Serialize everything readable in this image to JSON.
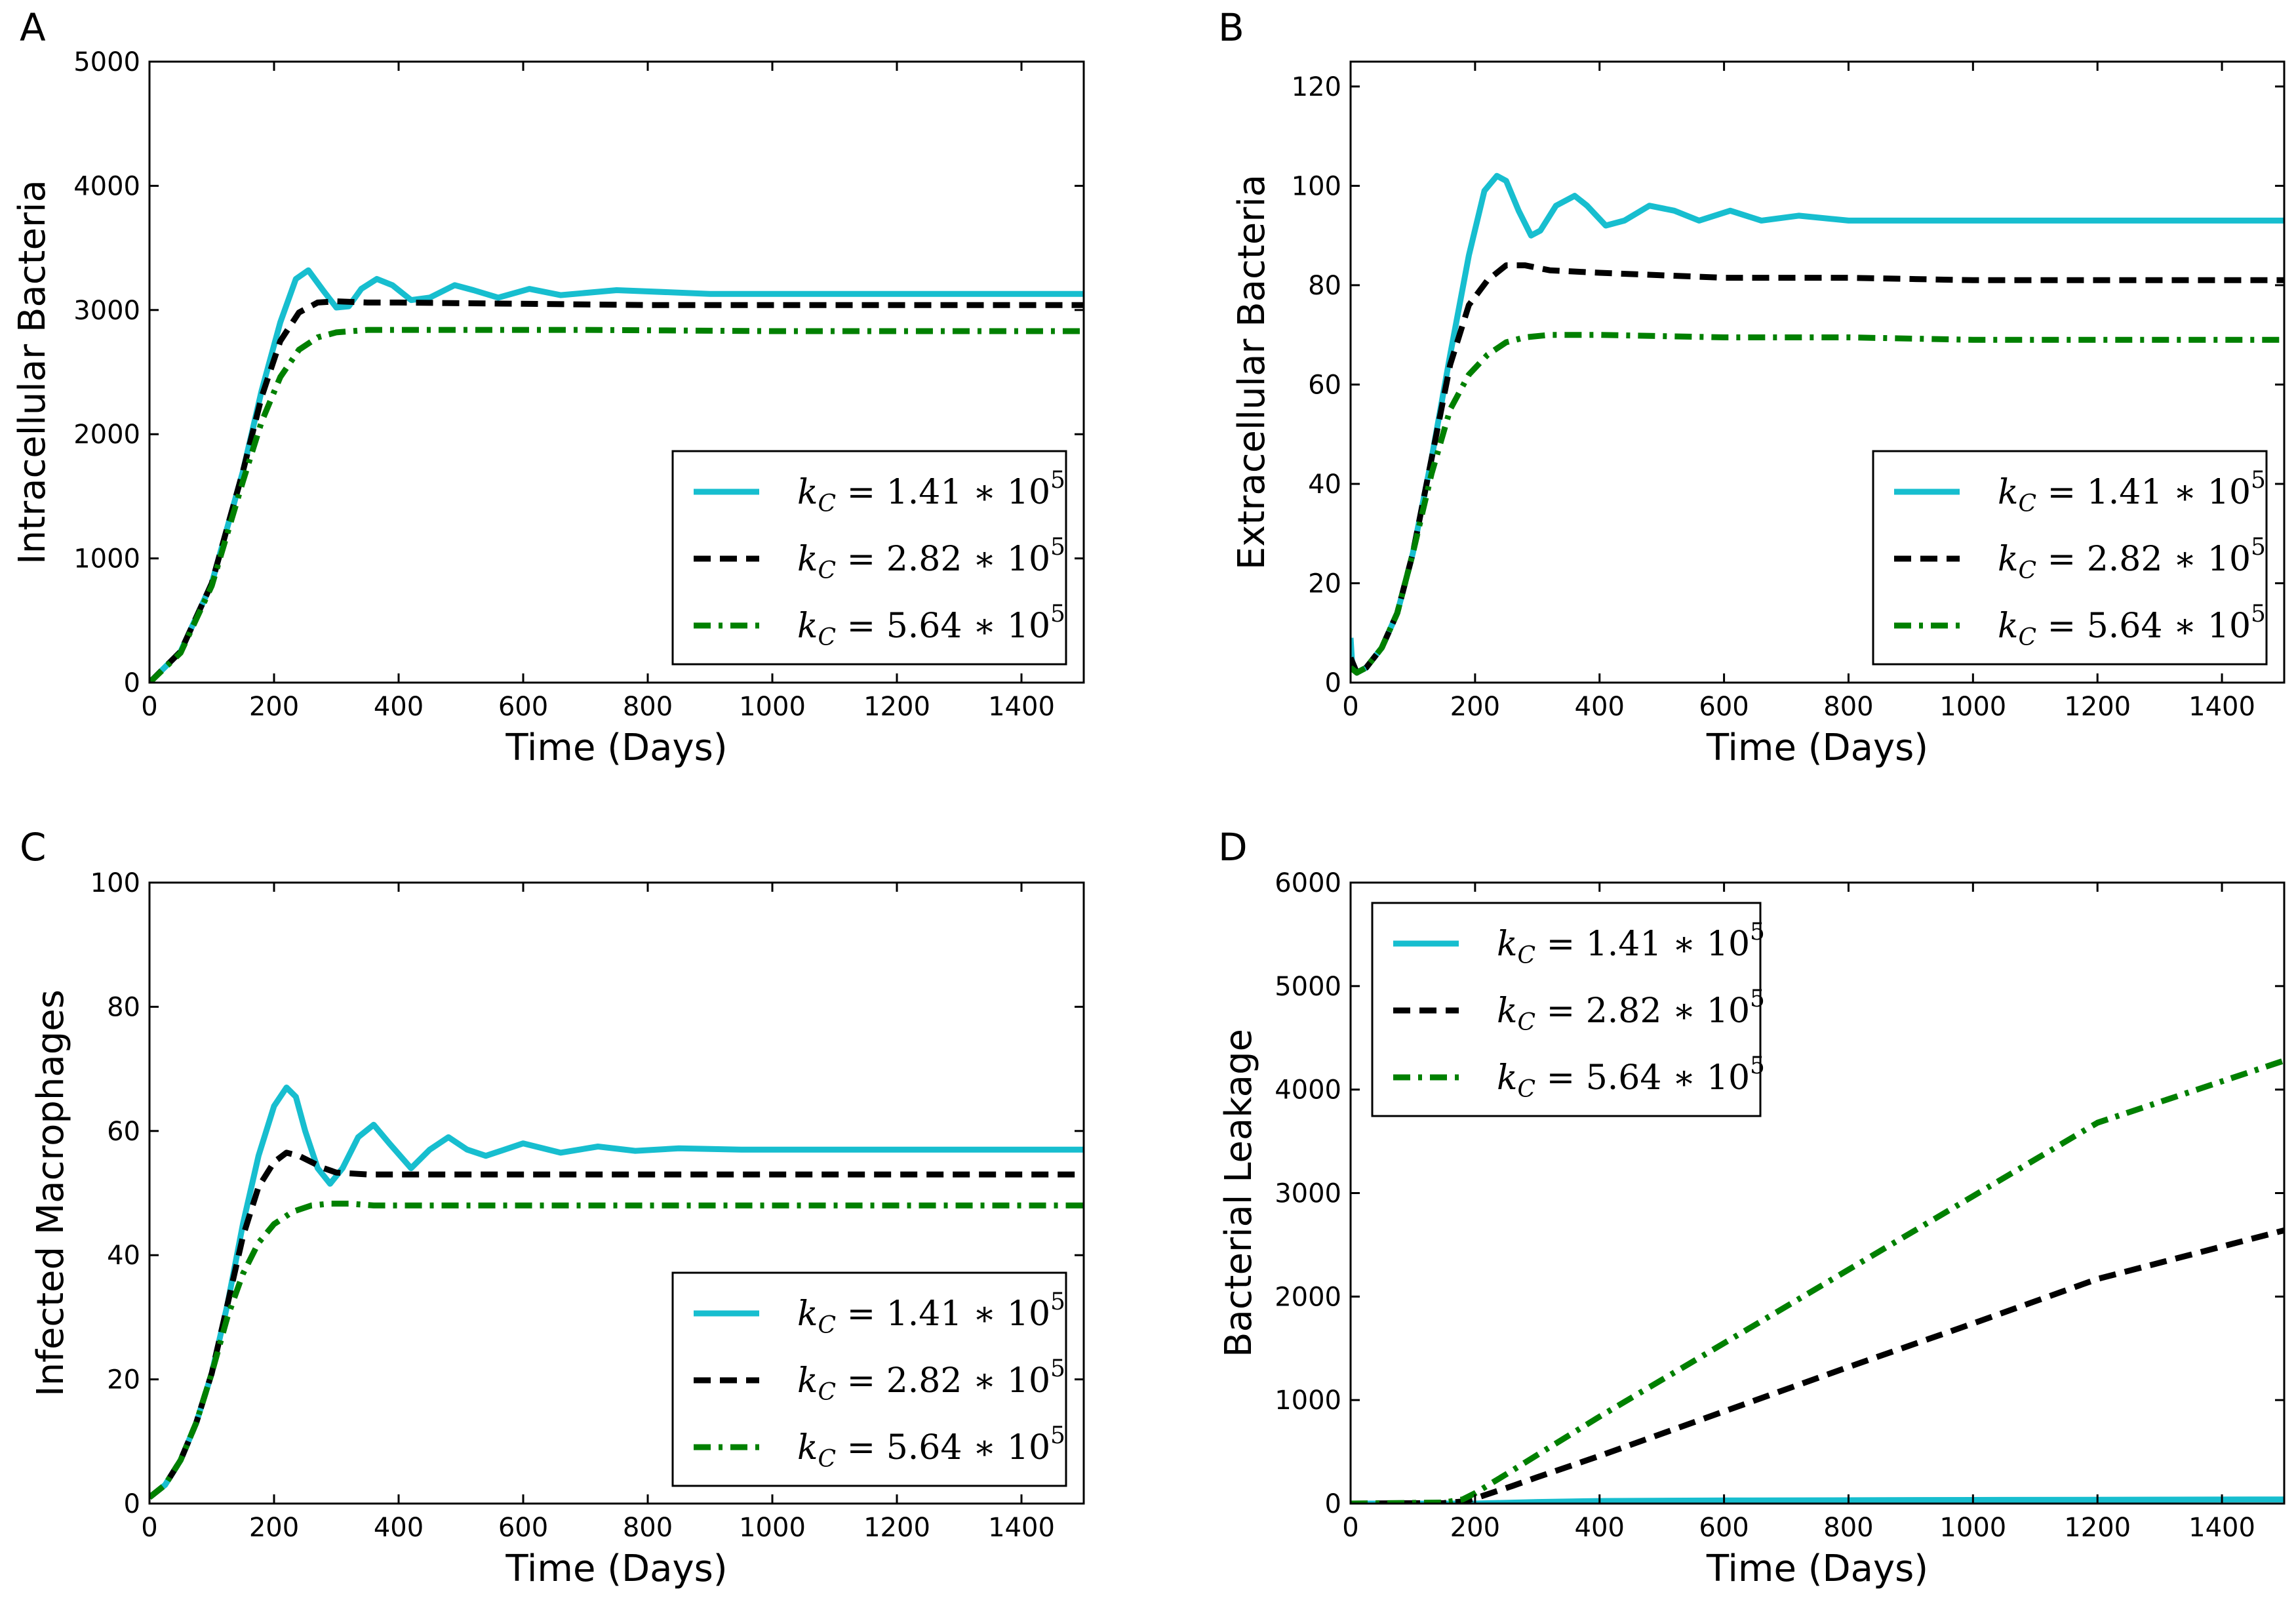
{
  "colors": {
    "cyan": "#17BECF",
    "black": "#000000",
    "green": "#008000"
  },
  "chart_data": [
    {
      "type": "line",
      "panel_label": "A",
      "title": "",
      "xlabel": "Time (Days)",
      "ylabel": "Intracellular Bacteria",
      "xlim": [
        0,
        1500
      ],
      "ylim": [
        0,
        5000
      ],
      "xticks": [
        "0",
        "200",
        "400",
        "600",
        "800",
        "1000",
        "1200",
        "1400"
      ],
      "yticks": [
        "0",
        "1000",
        "2000",
        "3000",
        "4000",
        "5000"
      ],
      "legend_position": "lower-right",
      "series": [
        {
          "name": "k_C = 1.41 * 10^5",
          "legend_main": "k",
          "legend_sub": "C",
          "legend_rest": " = 1.41 ∗ 10",
          "legend_exp": "5",
          "style": "solid",
          "color": "#17BECF",
          "x": [
            0,
            50,
            100,
            150,
            180,
            210,
            235,
            255,
            280,
            300,
            320,
            340,
            365,
            390,
            420,
            450,
            490,
            520,
            560,
            610,
            660,
            750,
            900,
            1100,
            1300,
            1500
          ],
          "y": [
            0,
            250,
            800,
            1700,
            2350,
            2900,
            3250,
            3320,
            3150,
            3020,
            3030,
            3170,
            3250,
            3200,
            3080,
            3100,
            3200,
            3160,
            3100,
            3170,
            3120,
            3160,
            3130,
            3130,
            3130,
            3130
          ]
        },
        {
          "name": "k_C = 2.82 * 10^5",
          "legend_main": "k",
          "legend_sub": "C",
          "legend_rest": " = 2.82 ∗ 10",
          "legend_exp": "5",
          "style": "dashed",
          "color": "#000000",
          "x": [
            0,
            50,
            100,
            150,
            180,
            210,
            240,
            270,
            300,
            350,
            400,
            600,
            800,
            1000,
            1200,
            1500
          ],
          "y": [
            0,
            250,
            800,
            1700,
            2300,
            2750,
            2980,
            3060,
            3070,
            3060,
            3060,
            3050,
            3040,
            3040,
            3040,
            3040
          ]
        },
        {
          "name": "k_C = 5.64 * 10^5",
          "legend_main": "k",
          "legend_sub": "C",
          "legend_rest": " = 5.64 ∗ 10",
          "legend_exp": "5",
          "style": "dashdot",
          "color": "#008000",
          "x": [
            0,
            50,
            100,
            150,
            180,
            210,
            240,
            270,
            300,
            350,
            400,
            500,
            700,
            1000,
            1500
          ],
          "y": [
            0,
            240,
            780,
            1620,
            2100,
            2460,
            2680,
            2780,
            2820,
            2840,
            2840,
            2840,
            2840,
            2830,
            2830
          ]
        }
      ]
    },
    {
      "type": "line",
      "panel_label": "B",
      "title": "",
      "xlabel": "Time (Days)",
      "ylabel": "Extracellular Bacteria",
      "xlim": [
        0,
        1500
      ],
      "ylim": [
        0,
        125
      ],
      "xticks": [
        "0",
        "200",
        "400",
        "600",
        "800",
        "1000",
        "1200",
        "1400"
      ],
      "yticks": [
        "0",
        "20",
        "40",
        "60",
        "80",
        "100",
        "120"
      ],
      "legend_position": "lower-right",
      "series": [
        {
          "name": "k_C = 1.41 * 10^5",
          "legend_main": "k",
          "legend_sub": "C",
          "legend_rest": " = 1.41 ∗ 10",
          "legend_exp": "5",
          "style": "solid",
          "color": "#17BECF",
          "x": [
            0,
            3,
            10,
            25,
            50,
            75,
            100,
            130,
            160,
            190,
            215,
            235,
            250,
            270,
            290,
            305,
            330,
            360,
            380,
            410,
            440,
            480,
            520,
            560,
            610,
            660,
            720,
            800,
            900,
            1100,
            1300,
            1500
          ],
          "y": [
            9,
            3,
            2,
            3,
            7,
            14,
            26,
            45,
            66,
            86,
            99,
            102,
            101,
            95,
            90,
            91,
            96,
            98,
            96,
            92,
            93,
            96,
            95,
            93,
            95,
            93,
            94,
            93,
            93,
            93,
            93,
            93
          ]
        },
        {
          "name": "k_C = 2.82 * 10^5",
          "legend_main": "k",
          "legend_sub": "C",
          "legend_rest": " = 2.82 ∗ 10",
          "legend_exp": "5",
          "style": "dashed",
          "color": "#000000",
          "x": [
            0,
            10,
            25,
            50,
            75,
            100,
            130,
            160,
            190,
            220,
            250,
            280,
            320,
            400,
            600,
            800,
            1000,
            1200,
            1500
          ],
          "y": [
            5,
            2,
            3,
            7,
            14,
            26,
            45,
            64,
            76,
            81,
            84,
            84,
            83,
            82.5,
            81.5,
            81.5,
            81,
            81,
            81
          ]
        },
        {
          "name": "k_C = 5.64 * 10^5",
          "legend_main": "k",
          "legend_sub": "C",
          "legend_rest": " = 5.64 ∗ 10",
          "legend_exp": "5",
          "style": "dashdot",
          "color": "#008000",
          "x": [
            0,
            10,
            25,
            50,
            75,
            100,
            130,
            160,
            190,
            220,
            250,
            280,
            320,
            400,
            600,
            800,
            1000,
            1500
          ],
          "y": [
            3,
            2,
            3,
            7,
            14,
            26,
            42,
            55,
            62,
            66,
            68.5,
            69.5,
            70,
            70,
            69.5,
            69.5,
            69,
            69
          ]
        }
      ]
    },
    {
      "type": "line",
      "panel_label": "C",
      "title": "",
      "xlabel": "Time (Days)",
      "ylabel": "Infected Macrophages",
      "xlim": [
        0,
        1500
      ],
      "ylim": [
        0,
        100
      ],
      "xticks": [
        "0",
        "200",
        "400",
        "600",
        "800",
        "1000",
        "1200",
        "1400"
      ],
      "yticks": [
        "0",
        "20",
        "40",
        "60",
        "80",
        "100"
      ],
      "legend_position": "lower-right",
      "series": [
        {
          "name": "k_C = 1.41 * 10^5",
          "legend_main": "k",
          "legend_sub": "C",
          "legend_rest": " = 1.41 ∗ 10",
          "legend_exp": "5",
          "style": "solid",
          "color": "#17BECF",
          "x": [
            0,
            25,
            50,
            75,
            100,
            125,
            150,
            175,
            200,
            220,
            235,
            250,
            270,
            290,
            310,
            335,
            360,
            385,
            420,
            450,
            480,
            510,
            540,
            600,
            660,
            720,
            780,
            850,
            950,
            1100,
            1300,
            1500
          ],
          "y": [
            1,
            3,
            7,
            13,
            21,
            32,
            45,
            56,
            64,
            67,
            65.5,
            60,
            54,
            51.5,
            54,
            59,
            61,
            58,
            54,
            57,
            59,
            57,
            56,
            58,
            56.5,
            57.5,
            56.8,
            57.2,
            57,
            57,
            57,
            57
          ]
        },
        {
          "name": "k_C = 2.82 * 10^5",
          "legend_main": "k",
          "legend_sub": "C",
          "legend_rest": " = 2.82 ∗ 10",
          "legend_exp": "5",
          "style": "dashed",
          "color": "#000000",
          "x": [
            0,
            25,
            50,
            75,
            100,
            125,
            150,
            175,
            200,
            220,
            240,
            260,
            280,
            300,
            350,
            400,
            600,
            800,
            1000,
            1200,
            1500
          ],
          "y": [
            1,
            3,
            7,
            13,
            21,
            32,
            43,
            51,
            55,
            56.5,
            56,
            55,
            54,
            53.3,
            53,
            53,
            53,
            53,
            53,
            53,
            53
          ]
        },
        {
          "name": "k_C = 5.64 * 10^5",
          "legend_main": "k",
          "legend_sub": "C",
          "legend_rest": " = 5.64 ∗ 10",
          "legend_exp": "5",
          "style": "dashdot",
          "color": "#008000",
          "x": [
            0,
            25,
            50,
            75,
            100,
            125,
            150,
            175,
            200,
            230,
            260,
            290,
            320,
            360,
            400,
            600,
            800,
            1000,
            1500
          ],
          "y": [
            1,
            3,
            7,
            13,
            21,
            30,
            37,
            42,
            45,
            47,
            48,
            48.3,
            48.3,
            48,
            48,
            48,
            48,
            48,
            48
          ]
        }
      ]
    },
    {
      "type": "line",
      "panel_label": "D",
      "title": "",
      "xlabel": "Time (Days)",
      "ylabel": "Bacterial Leakage",
      "xlim": [
        0,
        1500
      ],
      "ylim": [
        0,
        6000
      ],
      "xticks": [
        "0",
        "200",
        "400",
        "600",
        "800",
        "1000",
        "1200",
        "1400"
      ],
      "yticks": [
        "0",
        "1000",
        "2000",
        "3000",
        "4000",
        "5000",
        "6000"
      ],
      "legend_position": "top-left",
      "series": [
        {
          "name": "k_C = 1.41 * 10^5",
          "legend_main": "k",
          "legend_sub": "C",
          "legend_rest": " = 1.41 ∗ 10",
          "legend_exp": "5",
          "style": "solid",
          "color": "#17BECF",
          "x": [
            0,
            200,
            300,
            400,
            600,
            1000,
            1500
          ],
          "y": [
            0,
            0,
            15,
            25,
            30,
            35,
            40
          ]
        },
        {
          "name": "k_C = 2.82 * 10^5",
          "legend_main": "k",
          "legend_sub": "C",
          "legend_rest": " = 2.82 ∗ 10",
          "legend_exp": "5",
          "style": "dashed",
          "color": "#000000",
          "x": [
            0,
            150,
            180,
            200,
            230,
            260,
            300,
            400,
            600,
            800,
            1000,
            1200,
            1500
          ],
          "y": [
            0,
            5,
            20,
            50,
            110,
            170,
            255,
            460,
            890,
            1320,
            1740,
            2170,
            2640
          ]
        },
        {
          "name": "k_C = 5.64 * 10^5",
          "legend_main": "k",
          "legend_sub": "C",
          "legend_rest": " = 5.64 ∗ 10",
          "legend_exp": "5",
          "style": "dashdot",
          "color": "#008000",
          "x": [
            0,
            150,
            180,
            200,
            230,
            260,
            300,
            400,
            600,
            800,
            1000,
            1200,
            1500
          ],
          "y": [
            0,
            10,
            40,
            100,
            210,
            320,
            470,
            840,
            1550,
            2260,
            2970,
            3680,
            4280
          ]
        }
      ]
    }
  ]
}
